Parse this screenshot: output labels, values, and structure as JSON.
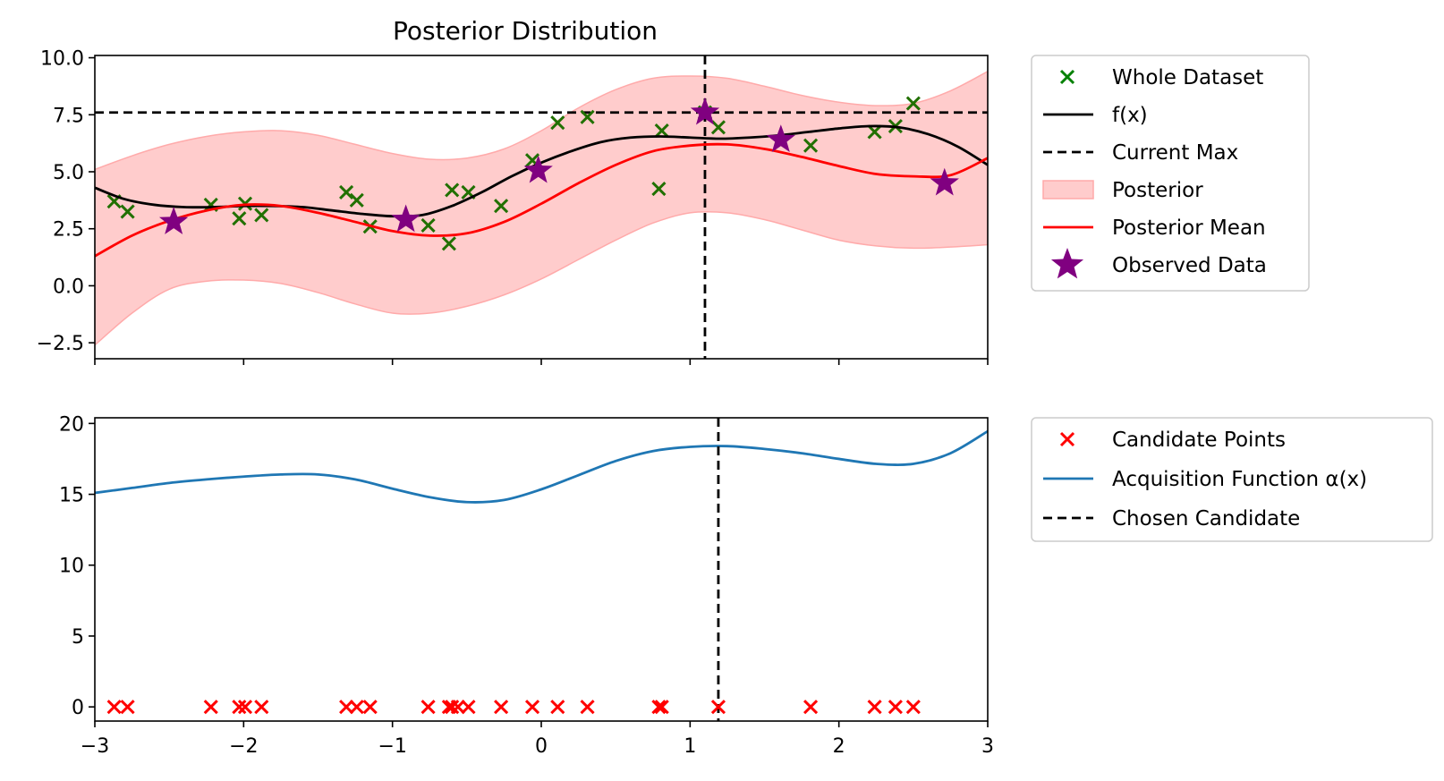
{
  "chart_data": [
    {
      "type": "line",
      "title": "Posterior Distribution",
      "xlabel": "",
      "ylabel": "",
      "xlim": [
        -3,
        3
      ],
      "ylim": [
        -3.2,
        10.1
      ],
      "yticks": [
        -2.5,
        0.0,
        2.5,
        5.0,
        7.5,
        10.0
      ],
      "ytick_labels": [
        "−2.5",
        "0.0",
        "2.5",
        "5.0",
        "7.5",
        "10.0"
      ],
      "xticks": [
        -3,
        -2,
        -1,
        0,
        1,
        2,
        3
      ],
      "grid": false,
      "legend_position": "outside-right",
      "legend": [
        "Whole Dataset",
        "f(x)",
        "Current Max",
        "Posterior",
        "Posterior Mean",
        "Observed Data"
      ],
      "colors": {
        "dataset": "#217000",
        "f": "#000000",
        "current_max": "#000000",
        "posterior_fill": "#ffcccc",
        "posterior_edge": "#ffaaaa",
        "mean": "#ff0000",
        "observed": "#800080"
      },
      "current_max": 7.6,
      "current_max_x": 1.1,
      "whole_dataset": [
        {
          "x": -2.87,
          "y": 3.7
        },
        {
          "x": -2.78,
          "y": 3.25
        },
        {
          "x": -2.22,
          "y": 3.55
        },
        {
          "x": -2.03,
          "y": 2.95
        },
        {
          "x": -1.99,
          "y": 3.6
        },
        {
          "x": -1.88,
          "y": 3.1
        },
        {
          "x": -1.31,
          "y": 4.1
        },
        {
          "x": -1.24,
          "y": 3.75
        },
        {
          "x": -1.15,
          "y": 2.6
        },
        {
          "x": -0.76,
          "y": 2.65
        },
        {
          "x": -0.62,
          "y": 1.85
        },
        {
          "x": -0.6,
          "y": 4.2
        },
        {
          "x": -0.49,
          "y": 4.1
        },
        {
          "x": -0.27,
          "y": 3.5
        },
        {
          "x": -0.06,
          "y": 5.5
        },
        {
          "x": 0.11,
          "y": 7.15
        },
        {
          "x": 0.31,
          "y": 7.4
        },
        {
          "x": 0.79,
          "y": 4.25
        },
        {
          "x": 0.81,
          "y": 6.8
        },
        {
          "x": 1.1,
          "y": 7.6
        },
        {
          "x": 1.19,
          "y": 6.95
        },
        {
          "x": 1.81,
          "y": 6.15
        },
        {
          "x": 2.24,
          "y": 6.75
        },
        {
          "x": 2.38,
          "y": 7.0
        },
        {
          "x": 2.5,
          "y": 8.0
        }
      ],
      "f_x": [
        {
          "x": -3.0,
          "y": 4.3
        },
        {
          "x": -2.8,
          "y": 3.8
        },
        {
          "x": -2.6,
          "y": 3.55
        },
        {
          "x": -2.4,
          "y": 3.45
        },
        {
          "x": -2.2,
          "y": 3.45
        },
        {
          "x": -2.0,
          "y": 3.5
        },
        {
          "x": -1.8,
          "y": 3.5
        },
        {
          "x": -1.6,
          "y": 3.45
        },
        {
          "x": -1.4,
          "y": 3.3
        },
        {
          "x": -1.2,
          "y": 3.15
        },
        {
          "x": -1.0,
          "y": 3.05
        },
        {
          "x": -0.8,
          "y": 3.1
        },
        {
          "x": -0.6,
          "y": 3.5
        },
        {
          "x": -0.4,
          "y": 4.1
        },
        {
          "x": -0.2,
          "y": 4.8
        },
        {
          "x": 0.0,
          "y": 5.4
        },
        {
          "x": 0.2,
          "y": 5.9
        },
        {
          "x": 0.4,
          "y": 6.3
        },
        {
          "x": 0.6,
          "y": 6.5
        },
        {
          "x": 0.8,
          "y": 6.55
        },
        {
          "x": 1.0,
          "y": 6.5
        },
        {
          "x": 1.2,
          "y": 6.45
        },
        {
          "x": 1.4,
          "y": 6.5
        },
        {
          "x": 1.6,
          "y": 6.6
        },
        {
          "x": 1.8,
          "y": 6.75
        },
        {
          "x": 2.0,
          "y": 6.9
        },
        {
          "x": 2.2,
          "y": 7.0
        },
        {
          "x": 2.4,
          "y": 6.95
        },
        {
          "x": 2.6,
          "y": 6.65
        },
        {
          "x": 2.8,
          "y": 6.1
        },
        {
          "x": 3.0,
          "y": 5.3
        }
      ],
      "posterior_mean": [
        {
          "x": -3.0,
          "y": 1.3
        },
        {
          "x": -2.75,
          "y": 2.2
        },
        {
          "x": -2.5,
          "y": 2.85
        },
        {
          "x": -2.25,
          "y": 3.3
        },
        {
          "x": -2.0,
          "y": 3.55
        },
        {
          "x": -1.75,
          "y": 3.5
        },
        {
          "x": -1.5,
          "y": 3.2
        },
        {
          "x": -1.25,
          "y": 2.8
        },
        {
          "x": -1.0,
          "y": 2.4
        },
        {
          "x": -0.75,
          "y": 2.2
        },
        {
          "x": -0.5,
          "y": 2.3
        },
        {
          "x": -0.25,
          "y": 2.8
        },
        {
          "x": 0.0,
          "y": 3.6
        },
        {
          "x": 0.25,
          "y": 4.5
        },
        {
          "x": 0.5,
          "y": 5.3
        },
        {
          "x": 0.75,
          "y": 5.9
        },
        {
          "x": 1.0,
          "y": 6.15
        },
        {
          "x": 1.25,
          "y": 6.2
        },
        {
          "x": 1.5,
          "y": 6.0
        },
        {
          "x": 1.75,
          "y": 5.65
        },
        {
          "x": 2.0,
          "y": 5.25
        },
        {
          "x": 2.25,
          "y": 4.9
        },
        {
          "x": 2.5,
          "y": 4.8
        },
        {
          "x": 2.75,
          "y": 4.85
        },
        {
          "x": 3.0,
          "y": 5.6
        }
      ],
      "posterior_band": {
        "x": [
          -3.0,
          -2.75,
          -2.5,
          -2.25,
          -2.0,
          -1.75,
          -1.5,
          -1.25,
          -1.0,
          -0.75,
          -0.5,
          -0.25,
          0.0,
          0.25,
          0.5,
          0.75,
          1.0,
          1.25,
          1.5,
          1.75,
          2.0,
          2.25,
          2.5,
          2.75,
          3.0
        ],
        "upper": [
          5.1,
          5.7,
          6.2,
          6.55,
          6.75,
          6.8,
          6.6,
          6.2,
          5.8,
          5.55,
          5.6,
          6.0,
          6.8,
          7.8,
          8.6,
          9.1,
          9.2,
          9.1,
          8.75,
          8.35,
          8.05,
          7.9,
          8.0,
          8.55,
          9.4
        ],
        "lower": [
          -2.6,
          -1.2,
          -0.15,
          0.2,
          0.25,
          0.1,
          -0.3,
          -0.8,
          -1.2,
          -1.2,
          -0.9,
          -0.4,
          0.3,
          1.15,
          2.0,
          2.75,
          3.2,
          3.2,
          2.9,
          2.45,
          2.0,
          1.75,
          1.65,
          1.7,
          1.8
        ]
      },
      "observed_data": [
        {
          "x": -2.47,
          "y": 2.8
        },
        {
          "x": -0.91,
          "y": 2.9
        },
        {
          "x": -0.02,
          "y": 5.05
        },
        {
          "x": 1.1,
          "y": 7.6
        },
        {
          "x": 1.61,
          "y": 6.4
        },
        {
          "x": 2.71,
          "y": 4.5
        }
      ]
    },
    {
      "type": "line",
      "title": "",
      "xlabel": "",
      "ylabel": "",
      "xlim": [
        -3,
        3
      ],
      "ylim": [
        -1,
        20.4
      ],
      "yticks": [
        0,
        5,
        10,
        15,
        20
      ],
      "ytick_labels": [
        "0",
        "5",
        "10",
        "15",
        "20"
      ],
      "xticks": [
        -3,
        -2,
        -1,
        0,
        1,
        2,
        3
      ],
      "xtick_labels": [
        "−3",
        "−2",
        "−1",
        "0",
        "1",
        "2",
        "3"
      ],
      "grid": false,
      "legend_position": "outside-right",
      "legend": [
        "Candidate Points",
        "Acquisition Function α(x)",
        "Chosen Candidate"
      ],
      "colors": {
        "candidates": "#ff0000",
        "acquisition": "#1f77b4",
        "chosen": "#000000"
      },
      "chosen_candidate_x": 1.19,
      "candidate_points_x": [
        -2.87,
        -2.78,
        -2.22,
        -2.03,
        -1.99,
        -1.88,
        -1.31,
        -1.24,
        -1.15,
        -0.76,
        -0.62,
        -0.6,
        -0.56,
        -0.49,
        -0.27,
        -0.06,
        0.11,
        0.31,
        0.79,
        0.81,
        1.19,
        1.81,
        2.24,
        2.38,
        2.5
      ],
      "candidate_points_y": 0,
      "acquisition_function": [
        {
          "x": -3.0,
          "y": 15.1
        },
        {
          "x": -2.75,
          "y": 15.45
        },
        {
          "x": -2.5,
          "y": 15.8
        },
        {
          "x": -2.25,
          "y": 16.05
        },
        {
          "x": -2.0,
          "y": 16.25
        },
        {
          "x": -1.75,
          "y": 16.4
        },
        {
          "x": -1.5,
          "y": 16.4
        },
        {
          "x": -1.25,
          "y": 16.05
        },
        {
          "x": -1.0,
          "y": 15.4
        },
        {
          "x": -0.75,
          "y": 14.8
        },
        {
          "x": -0.5,
          "y": 14.45
        },
        {
          "x": -0.25,
          "y": 14.6
        },
        {
          "x": 0.0,
          "y": 15.35
        },
        {
          "x": 0.25,
          "y": 16.35
        },
        {
          "x": 0.5,
          "y": 17.35
        },
        {
          "x": 0.75,
          "y": 18.05
        },
        {
          "x": 1.0,
          "y": 18.35
        },
        {
          "x": 1.25,
          "y": 18.4
        },
        {
          "x": 1.5,
          "y": 18.2
        },
        {
          "x": 1.75,
          "y": 17.9
        },
        {
          "x": 2.0,
          "y": 17.5
        },
        {
          "x": 2.25,
          "y": 17.15
        },
        {
          "x": 2.5,
          "y": 17.15
        },
        {
          "x": 2.75,
          "y": 17.9
        },
        {
          "x": 3.0,
          "y": 19.45
        }
      ]
    }
  ]
}
